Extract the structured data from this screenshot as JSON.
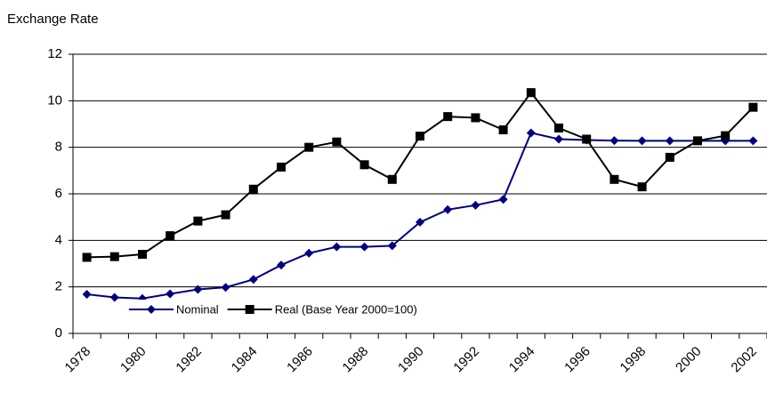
{
  "chart_data": {
    "type": "line",
    "y_label": "Exchange Rate",
    "categories": [
      "1978",
      null,
      "1980",
      null,
      "1982",
      null,
      "1984",
      null,
      "1986",
      null,
      "1988",
      null,
      "1990",
      null,
      "1992",
      null,
      "1994",
      null,
      "1996",
      null,
      "1998",
      null,
      "2000",
      null,
      "2002"
    ],
    "series": [
      {
        "name": "Nominal",
        "color": "#000080",
        "marker": "diamond",
        "values": [
          1.68,
          1.55,
          1.5,
          1.7,
          1.89,
          1.98,
          2.32,
          2.94,
          3.45,
          3.72,
          3.72,
          3.77,
          4.78,
          5.32,
          5.51,
          5.76,
          8.62,
          8.35,
          8.31,
          8.29,
          8.28,
          8.28,
          8.28,
          8.28,
          8.28
        ]
      },
      {
        "name": "Real (Base Year 2000=100)",
        "color": "#000000",
        "marker": "square",
        "values": [
          3.27,
          3.3,
          3.4,
          4.2,
          4.83,
          5.1,
          6.2,
          7.15,
          8.0,
          8.23,
          7.25,
          6.62,
          8.48,
          9.32,
          9.27,
          8.75,
          10.35,
          8.83,
          8.35,
          6.62,
          6.3,
          7.57,
          8.28,
          8.5,
          9.72
        ]
      }
    ],
    "ylim": [
      0,
      12
    ],
    "yticks": [
      0,
      2,
      4,
      6,
      8,
      10,
      12
    ],
    "grid": true
  }
}
